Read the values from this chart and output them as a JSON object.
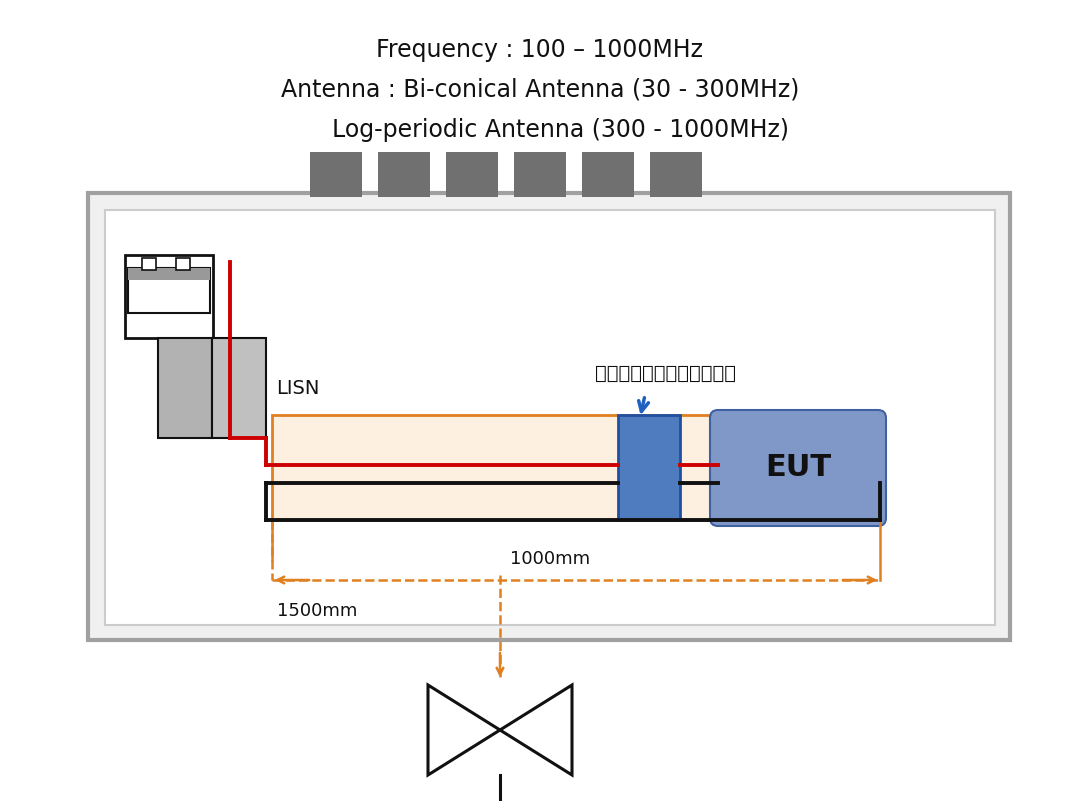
{
  "bg_color": "#ffffff",
  "title1": "Frequency : 100 – 1000MHz",
  "title2": "Antenna : Bi-conical Antenna (30 - 300MHz)",
  "title3": "Log-periodic Antenna (300 - 1000MHz)",
  "lisn_label": "LISN",
  "eut_label": "EUT",
  "chinese_label": "安装了共模抑流线圈的基板",
  "dim_1500": "1500mm",
  "dim_1000": "1000mm",
  "orange": "#e08020",
  "blue_choke": "#4f7bbf",
  "eut_blue": "#8098c8",
  "red": "#cc0000",
  "black": "#111111",
  "gray_outer": "#a0a0a0",
  "gray_inner": "#f8f8f8",
  "gray_slots": "#707070",
  "gray_lisn": "#b5b5b5",
  "arrow_blue": "#2060c0"
}
